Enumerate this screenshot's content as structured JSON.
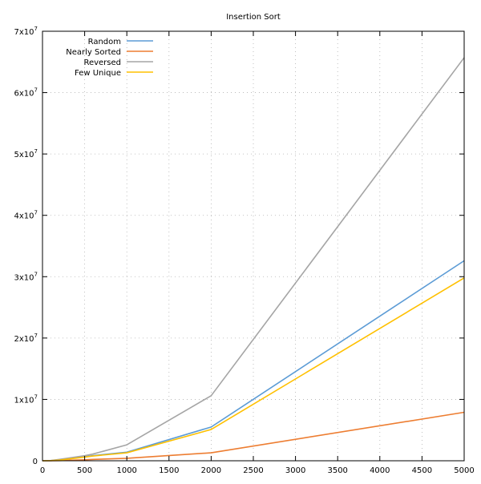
{
  "chart_data": {
    "type": "line",
    "title": "Insertion Sort",
    "xlabel": "",
    "ylabel": "",
    "xlim": [
      0,
      5000
    ],
    "ylim": [
      0,
      70000000
    ],
    "x_ticks": [
      0,
      500,
      1000,
      1500,
      2000,
      2500,
      3000,
      3500,
      4000,
      4500,
      5000
    ],
    "y_ticks": [
      {
        "value": 0,
        "label": "0",
        "exp": ""
      },
      {
        "value": 10000000,
        "label": "1x10",
        "exp": "7"
      },
      {
        "value": 20000000,
        "label": "2x10",
        "exp": "7"
      },
      {
        "value": 30000000,
        "label": "3x10",
        "exp": "7"
      },
      {
        "value": 40000000,
        "label": "4x10",
        "exp": "7"
      },
      {
        "value": 50000000,
        "label": "5x10",
        "exp": "7"
      },
      {
        "value": 60000000,
        "label": "6x10",
        "exp": "7"
      },
      {
        "value": 70000000,
        "label": "7x10",
        "exp": "7"
      }
    ],
    "grid": true,
    "legend_position": "top-left",
    "x": [
      0,
      100,
      200,
      500,
      600,
      1000,
      2000,
      5000
    ],
    "series": [
      {
        "name": "Random",
        "color": "#5b9bd5",
        "values": [
          0,
          20000,
          120000,
          650000,
          850000,
          1400000,
          5500000,
          32600000
        ]
      },
      {
        "name": "Nearly Sorted",
        "color": "#ed7d31",
        "values": [
          0,
          10000,
          30000,
          150000,
          220000,
          400000,
          1300000,
          7900000
        ]
      },
      {
        "name": "Reversed",
        "color": "#a5a5a5",
        "values": [
          0,
          40000,
          220000,
          820000,
          1100000,
          2600000,
          10600000,
          65700000
        ]
      },
      {
        "name": "Few Unique",
        "color": "#ffc000",
        "values": [
          0,
          18000,
          100000,
          600000,
          780000,
          1300000,
          5100000,
          29800000
        ]
      }
    ]
  }
}
